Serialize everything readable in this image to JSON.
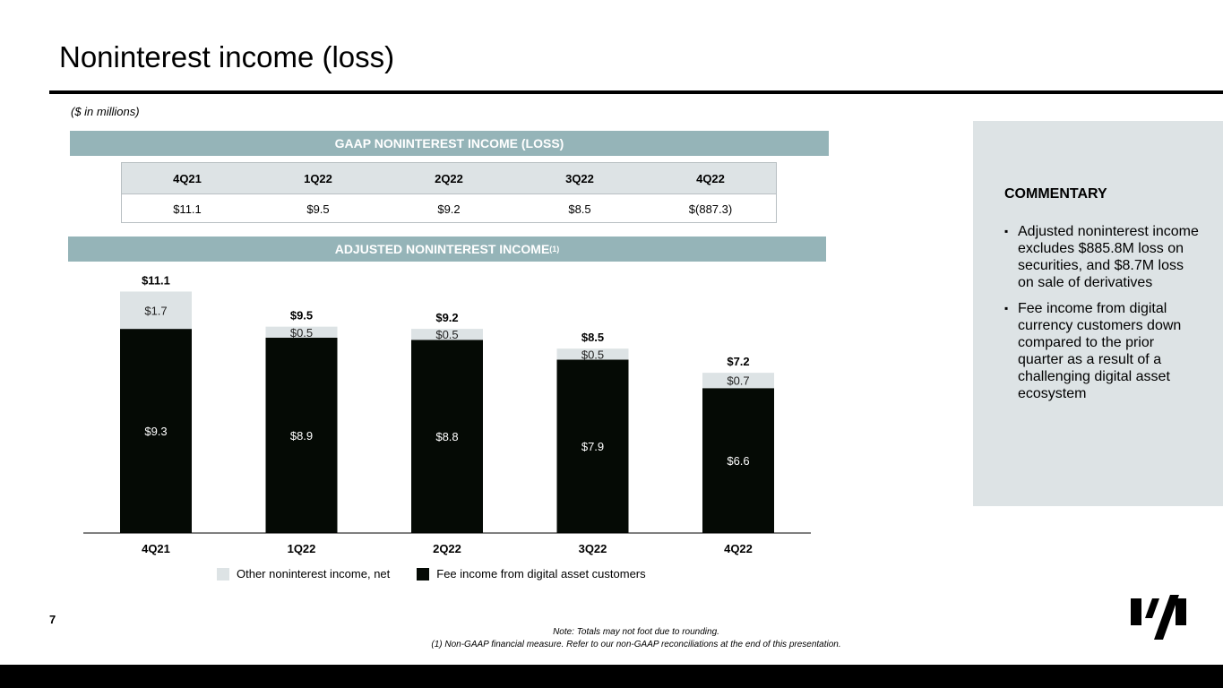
{
  "page": {
    "title": "Noninterest income (loss)",
    "units_note": "($ in millions)",
    "page_number": "7",
    "note_1": "Note: Totals may not foot due to rounding.",
    "note_2": "(1) Non-GAAP financial measure. Refer to our non-GAAP reconciliations at the end of this presentation."
  },
  "gaap": {
    "band_label": "GAAP NONINTEREST INCOME (LOSS)",
    "headers": [
      "4Q21",
      "1Q22",
      "2Q22",
      "3Q22",
      "4Q22"
    ],
    "values": [
      "$11.1",
      "$9.5",
      "$9.2",
      "$8.5",
      "$(887.3)"
    ]
  },
  "adjusted": {
    "band_label": "ADJUSTED NONINTEREST INCOME",
    "band_sup": "(1)"
  },
  "chart_data": {
    "type": "bar",
    "stacked": true,
    "categories": [
      "4Q21",
      "1Q22",
      "2Q22",
      "3Q22",
      "4Q22"
    ],
    "series": [
      {
        "name": "Fee income from digital asset customers",
        "values": [
          9.3,
          8.9,
          8.8,
          7.9,
          6.6
        ],
        "labels": [
          "$9.3",
          "$8.9",
          "$8.8",
          "$7.9",
          "$6.6"
        ],
        "color": "#050a05"
      },
      {
        "name": "Other noninterest income, net",
        "values": [
          1.7,
          0.5,
          0.5,
          0.5,
          0.7
        ],
        "labels": [
          "$1.7",
          "$0.5",
          "$0.5",
          "$0.5",
          "$0.7"
        ],
        "color": "#dde3e5"
      }
    ],
    "totals": [
      "$11.1",
      "$9.5",
      "$9.2",
      "$8.5",
      "$7.2"
    ],
    "ylim": [
      0,
      11.1
    ],
    "legend_position": "bottom"
  },
  "legend": {
    "other_label": "Other noninterest income, net",
    "fee_label": "Fee income from digital asset customers"
  },
  "commentary": {
    "title": "COMMENTARY",
    "bullet_mark": "▪",
    "bullets": [
      "Adjusted noninterest income excludes $885.8M loss on securities, and $8.7M loss on sale of derivatives",
      "Fee income from digital currency customers down compared to the prior quarter as a result of a challenging digital asset ecosystem"
    ]
  },
  "colors": {
    "band": "#95b4b8",
    "panel": "#dde3e5",
    "fee_bar": "#050a05",
    "other_bar": "#dde3e5"
  },
  "logo": {
    "icon": "company-logo-icon"
  }
}
